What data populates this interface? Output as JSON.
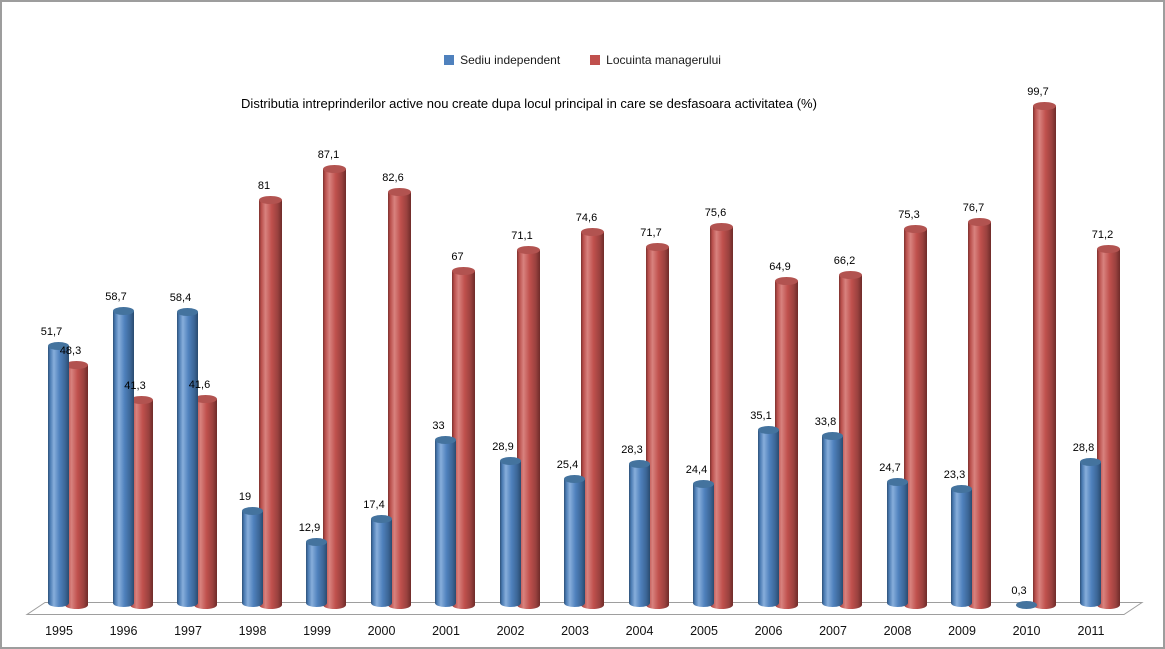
{
  "chart_data": {
    "type": "bar",
    "subtype": "3d-cylinder",
    "title": "Distributia intreprinderilor active nou create dupa locul principal in care se desfasoara activitatea (%)",
    "xlabel": "",
    "ylabel": "",
    "ylim": [
      0,
      100
    ],
    "grid": false,
    "legend_position": "top",
    "value_decimal_separator": ",",
    "categories": [
      "1995",
      "1996",
      "1997",
      "1998",
      "1999",
      "2000",
      "2001",
      "2002",
      "2003",
      "2004",
      "2005",
      "2006",
      "2007",
      "2008",
      "2009",
      "2010",
      "2011"
    ],
    "series": [
      {
        "name": "Sediu independent",
        "color": "#4f81bd",
        "values": [
          51.7,
          58.7,
          58.4,
          19,
          12.9,
          17.4,
          33,
          28.9,
          25.4,
          28.3,
          24.4,
          35.1,
          33.8,
          24.7,
          23.3,
          0.3,
          28.8
        ],
        "labels": [
          "51,7",
          "58,7",
          "58,4",
          "19",
          "12,9",
          "17,4",
          "33",
          "28,9",
          "25,4",
          "28,3",
          "24,4",
          "35,1",
          "33,8",
          "24,7",
          "23,3",
          "0,3",
          "28,8"
        ]
      },
      {
        "name": "Locuinta managerului",
        "color": "#c0504d",
        "values": [
          48.3,
          41.3,
          41.6,
          81,
          87.1,
          82.6,
          67,
          71.1,
          74.6,
          71.7,
          75.6,
          64.9,
          66.2,
          75.3,
          76.7,
          99.7,
          71.2
        ],
        "labels": [
          "48,3",
          "41,3",
          "41,6",
          "81",
          "87,1",
          "82,6",
          "67",
          "71,1",
          "74,6",
          "71,7",
          "75,6",
          "64,9",
          "66,2",
          "75,3",
          "76,7",
          "99,7",
          "71,2"
        ]
      }
    ]
  }
}
